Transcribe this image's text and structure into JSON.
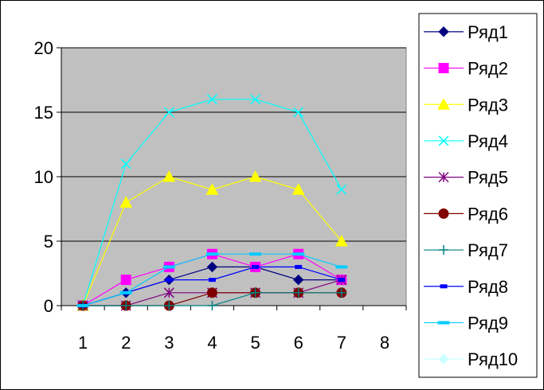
{
  "chart_data": {
    "type": "line",
    "title": "",
    "xlabel": "",
    "ylabel": "",
    "categories": [
      "1",
      "2",
      "3",
      "4",
      "5",
      "6",
      "7",
      "8"
    ],
    "ylim": [
      0,
      20
    ],
    "yticks": [
      "0",
      "5",
      "10",
      "15",
      "20"
    ],
    "grid": "horizontal",
    "plot_background": "#c0c0c0",
    "legend_position": "right",
    "series": [
      {
        "name": "Ряд1",
        "color": "#000080",
        "marker": "diamond",
        "values": [
          0,
          1,
          2,
          3,
          3,
          2,
          2,
          null
        ]
      },
      {
        "name": "Ряд2",
        "color": "#ff00ff",
        "marker": "square",
        "values": [
          0,
          2,
          3,
          4,
          3,
          4,
          2,
          null
        ]
      },
      {
        "name": "Ряд3",
        "color": "#ffff00",
        "marker": "triangle",
        "values": [
          0,
          8,
          10,
          9,
          10,
          9,
          5,
          null
        ]
      },
      {
        "name": "Ряд4",
        "color": "#00ffff",
        "marker": "x",
        "values": [
          0,
          11,
          15,
          16,
          16,
          15,
          9,
          null
        ]
      },
      {
        "name": "Ряд5",
        "color": "#800080",
        "marker": "star",
        "values": [
          0,
          0,
          1,
          1,
          1,
          1,
          2,
          null
        ]
      },
      {
        "name": "Ряд6",
        "color": "#800000",
        "marker": "circle",
        "values": [
          0,
          0,
          0,
          1,
          1,
          1,
          1,
          null
        ]
      },
      {
        "name": "Ряд7",
        "color": "#008080",
        "marker": "plus",
        "values": [
          0,
          0,
          0,
          0,
          1,
          1,
          1,
          null
        ]
      },
      {
        "name": "Ряд8",
        "color": "#0000ff",
        "marker": "dash",
        "values": [
          0,
          1,
          2,
          2,
          3,
          3,
          2,
          null
        ]
      },
      {
        "name": "Ряд9",
        "color": "#00ccff",
        "marker": "longdash",
        "values": [
          0,
          1,
          3,
          4,
          4,
          4,
          3,
          null
        ]
      },
      {
        "name": "Ряд10",
        "color": "#ccffff",
        "marker": "diamond",
        "values": [
          null,
          null,
          null,
          null,
          null,
          null,
          null,
          null
        ]
      }
    ]
  }
}
